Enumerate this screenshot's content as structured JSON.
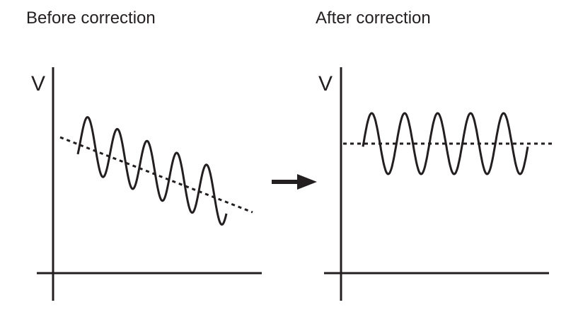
{
  "panels": [
    {
      "title": "Before correction",
      "y_axis_label": "V",
      "baseline": "sloped",
      "cycles": 5
    },
    {
      "title": "After correction",
      "y_axis_label": "V",
      "baseline": "flat",
      "cycles": 5
    }
  ],
  "colors": {
    "line": "#231f20",
    "background": "#ffffff"
  },
  "icons": {
    "transition": "right-arrow-icon"
  }
}
